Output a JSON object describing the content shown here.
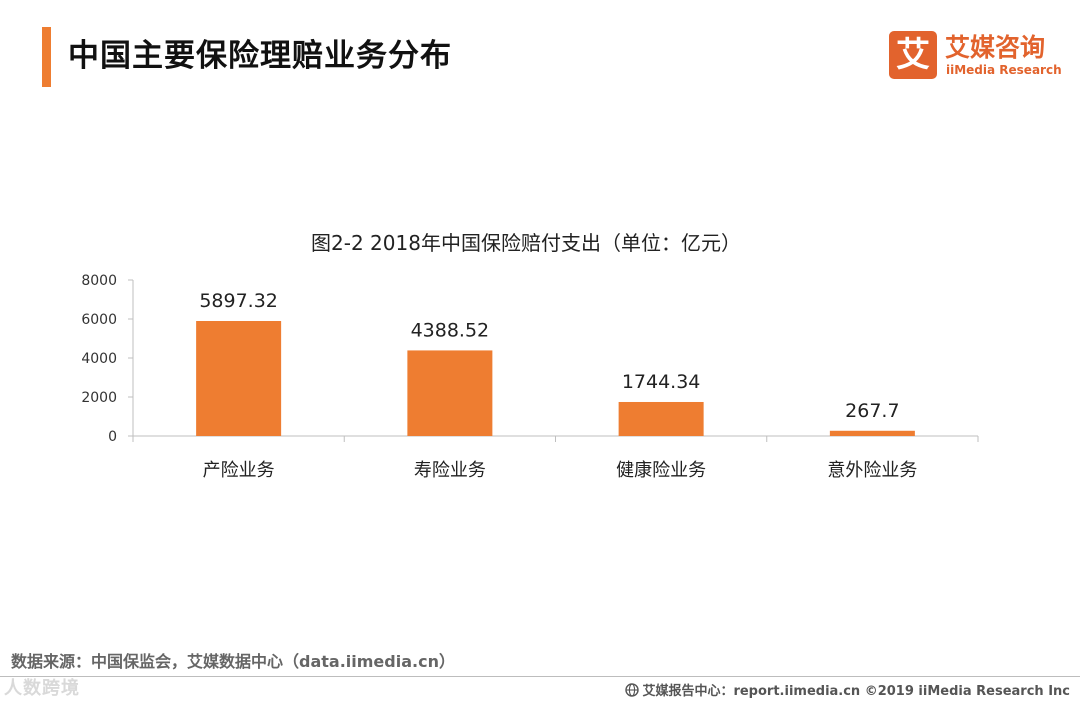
{
  "header": {
    "title": "中国主要保险理赔业务分布"
  },
  "logo": {
    "mark": "艾",
    "name_cn": "艾媒咨询",
    "name_en": "iiMedia Research"
  },
  "chart_data": {
    "type": "bar",
    "title": "图2-2 2018年中国保险赔付支出（单位：亿元）",
    "categories": [
      "产险业务",
      "寿险业务",
      "健康险业务",
      "意外险业务"
    ],
    "values": [
      5897.32,
      4388.52,
      1744.34,
      267.7
    ],
    "value_labels": [
      "5897.32",
      "4388.52",
      "1744.34",
      "267.7"
    ],
    "yticks": [
      "0",
      "2000",
      "4000",
      "6000",
      "8000"
    ],
    "ylim": [
      0,
      8000
    ],
    "xlabel": "",
    "ylabel": "",
    "grid": false,
    "bar_color": "#ee7d31"
  },
  "footer": {
    "source": "数据来源：中国保监会，艾媒数据中心（data.iimedia.cn）",
    "right": "艾媒报告中心：report.iimedia.cn   ©2019  iiMedia Research  Inc",
    "watermark": "人数跨境"
  }
}
